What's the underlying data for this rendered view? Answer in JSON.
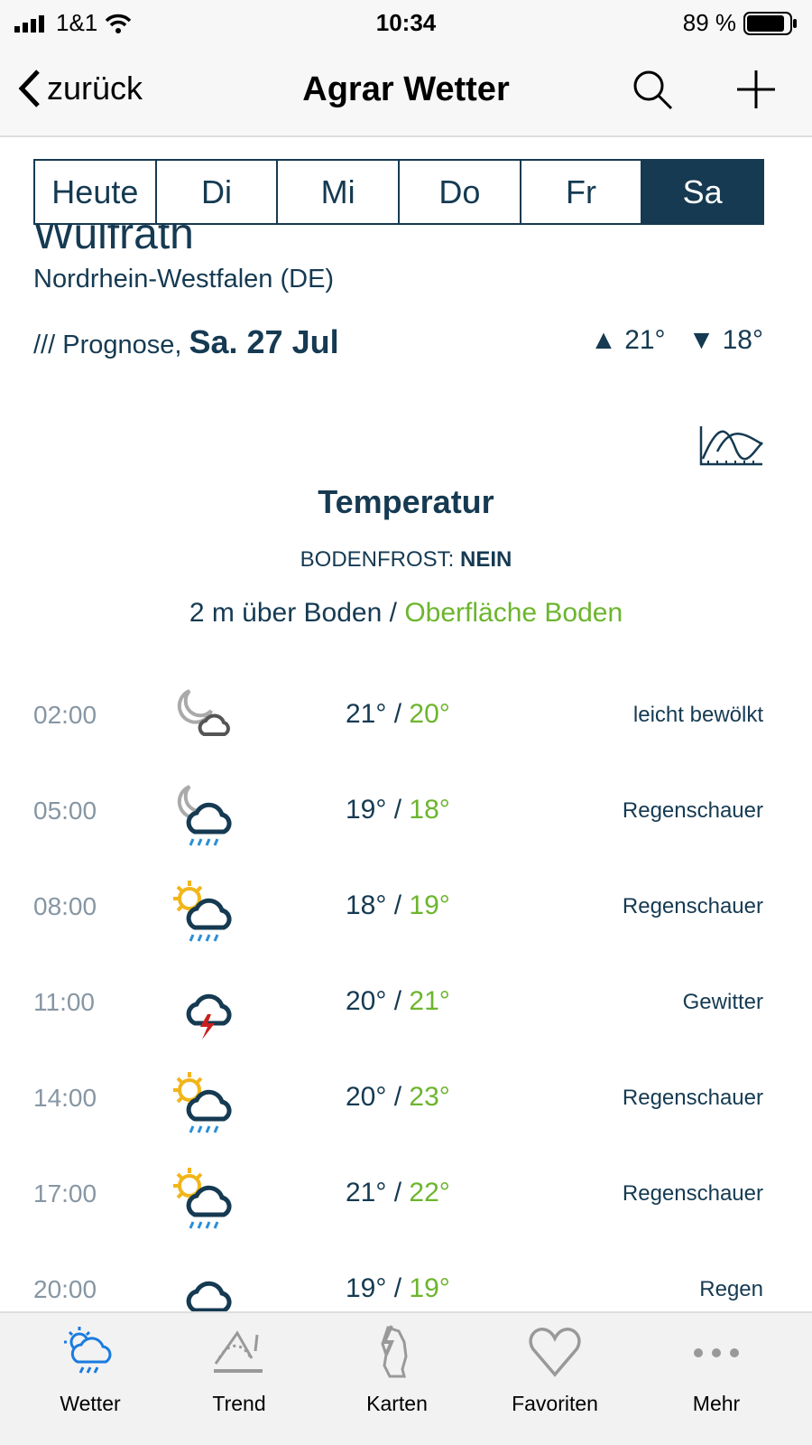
{
  "status": {
    "carrier": "1&1",
    "time": "10:34",
    "battery": "89 %",
    "battery_level": 0.89
  },
  "nav": {
    "back": "zurück",
    "title": "Agrar Wetter"
  },
  "days": [
    {
      "label": "Heute",
      "active": false
    },
    {
      "label": "Di",
      "active": false
    },
    {
      "label": "Mi",
      "active": false
    },
    {
      "label": "Do",
      "active": false
    },
    {
      "label": "Fr",
      "active": false
    },
    {
      "label": "Sa",
      "active": true
    }
  ],
  "location": {
    "city": "Wulfrath",
    "region": "Nordrhein-Westfalen (DE)"
  },
  "forecast": {
    "prefix": "/// Prognose,",
    "date": "Sa. 27 Jul",
    "max": "21°",
    "min": "18°"
  },
  "section": {
    "title": "Temperatur",
    "frost_label": "BODENFROST:",
    "frost_value": "NEIN",
    "level_air": "2 m über Boden",
    "sep": "/",
    "level_ground": "Oberfläche Boden"
  },
  "rows": [
    {
      "time": "02:00",
      "icon": "moon-cloud-icon",
      "air": "21°",
      "ground": "20°",
      "desc": "leicht bewölkt"
    },
    {
      "time": "05:00",
      "icon": "moon-rain-cloud-icon",
      "air": "19°",
      "ground": "18°",
      "desc": "Regenschauer"
    },
    {
      "time": "08:00",
      "icon": "sun-rain-cloud-icon",
      "air": "18°",
      "ground": "19°",
      "desc": "Regenschauer"
    },
    {
      "time": "11:00",
      "icon": "thunderstorm-icon",
      "air": "20°",
      "ground": "21°",
      "desc": "Gewitter"
    },
    {
      "time": "14:00",
      "icon": "sun-rain-cloud-icon",
      "air": "20°",
      "ground": "23°",
      "desc": "Regenschauer"
    },
    {
      "time": "17:00",
      "icon": "sun-rain-cloud-icon",
      "air": "21°",
      "ground": "22°",
      "desc": "Regenschauer"
    },
    {
      "time": "20:00",
      "icon": "rain-cloud-icon",
      "air": "19°",
      "ground": "19°",
      "desc": "Regen"
    }
  ],
  "tabbar": [
    {
      "label": "Wetter",
      "active": true
    },
    {
      "label": "Trend"
    },
    {
      "label": "Karten"
    },
    {
      "label": "Favoriten"
    },
    {
      "label": "Mehr"
    }
  ],
  "colors": {
    "primary": "#153a52",
    "ground": "#6cb52d",
    "active_tab": "#1a7be0",
    "time": "#8796a3"
  }
}
